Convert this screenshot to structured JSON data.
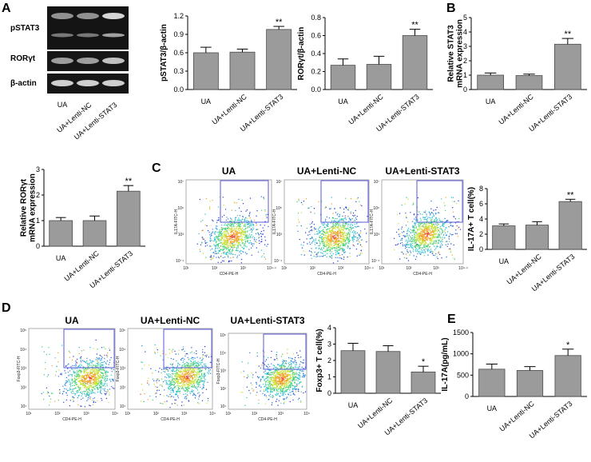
{
  "panels": {
    "A": "A",
    "B": "B",
    "C": "C",
    "D": "D",
    "E": "E"
  },
  "western_blot": {
    "bands": [
      "pSTAT3",
      "RORγt",
      "β-actin"
    ],
    "lanes": [
      "UA",
      "UA+Lenti-NC",
      "UA+Lenti-STAT3"
    ],
    "intensity": [
      [
        0.45,
        0.45,
        0.95
      ],
      [
        0.55,
        0.55,
        0.8
      ],
      [
        0.9,
        0.9,
        0.9
      ]
    ]
  },
  "flow": {
    "C": {
      "titles": [
        "UA",
        "UA+Lenti-NC",
        "UA+Lenti-STAT3"
      ],
      "xlabel": "CD4-PE-H",
      "ylabel": "IL17A-FITC-H",
      "xticks": [
        "10¹",
        "10²",
        "10³",
        "10⁴·⁴"
      ],
      "yticks": [
        "10⁷",
        "10⁵",
        "10³",
        "10⁻¹"
      ]
    },
    "D": {
      "titles": [
        "UA",
        "UA+Lenti-NC",
        "UA+Lenti-STAT3"
      ],
      "xlabel": "CD4-PE-H",
      "ylabel": "Foxp3-FITC-H",
      "xticks": [
        "10¹",
        "10²",
        "10³",
        "10⁴"
      ],
      "yticks": [
        "10⁵",
        "10⁴",
        "10³",
        "10²",
        "10¹"
      ]
    }
  },
  "chart_data": [
    {
      "id": "A1",
      "type": "bar",
      "categories": [
        "UA",
        "UA+Lenti-NC",
        "UA+Lenti-STAT3"
      ],
      "values": [
        0.6,
        0.61,
        0.98
      ],
      "errors": [
        0.09,
        0.05,
        0.05
      ],
      "sig": [
        "",
        "",
        "**"
      ],
      "ylabel": "pSTAT3/β-actin",
      "ylim": [
        0,
        1.2
      ],
      "yticks": [
        0.0,
        0.3,
        0.6,
        0.9,
        1.2
      ],
      "ytick_labels": [
        "0.0",
        "0.3",
        "0.6",
        "0.9",
        "1.2"
      ]
    },
    {
      "id": "A2",
      "type": "bar",
      "categories": [
        "UA",
        "UA+Lenti-NC",
        "UA+Lenti-STAT3"
      ],
      "values": [
        0.27,
        0.28,
        0.6
      ],
      "errors": [
        0.07,
        0.09,
        0.07
      ],
      "sig": [
        "",
        "",
        "**"
      ],
      "ylabel": "RORγt/β-actin",
      "ylim": [
        0,
        0.8
      ],
      "yticks": [
        0.0,
        0.2,
        0.4,
        0.6,
        0.8
      ],
      "ytick_labels": [
        "0.0",
        "0.2",
        "0.4",
        "0.6",
        "0.8"
      ]
    },
    {
      "id": "B",
      "type": "bar",
      "categories": [
        "UA",
        "UA+Lenti-NC",
        "UA+Lenti-STAT3"
      ],
      "values": [
        1.0,
        0.97,
        3.15
      ],
      "errors": [
        0.15,
        0.1,
        0.4
      ],
      "sig": [
        "",
        "",
        "**"
      ],
      "ylabel": "Relative STAT3 mRNA expression",
      "ylim": [
        0,
        5
      ],
      "yticks": [
        0,
        1,
        2,
        3,
        4,
        5
      ],
      "ytick_labels": [
        "0",
        "1",
        "2",
        "3",
        "4",
        "5"
      ]
    },
    {
      "id": "A3",
      "type": "bar",
      "categories": [
        "UA",
        "UA+Lenti-NC",
        "UA+Lenti-STAT3"
      ],
      "values": [
        1.0,
        1.0,
        2.15
      ],
      "errors": [
        0.12,
        0.18,
        0.22
      ],
      "sig": [
        "",
        "",
        "**"
      ],
      "ylabel": "Relative RORγt mRNA expression",
      "ylim": [
        0,
        3
      ],
      "yticks": [
        0,
        1,
        2,
        3
      ],
      "ytick_labels": [
        "0",
        "1",
        "2",
        "3"
      ]
    },
    {
      "id": "C",
      "type": "bar",
      "categories": [
        "UA",
        "UA+Lenti-NC",
        "UA+Lenti-STAT3"
      ],
      "values": [
        3.1,
        3.2,
        6.3
      ],
      "errors": [
        0.25,
        0.45,
        0.3
      ],
      "sig": [
        "",
        "",
        "**"
      ],
      "ylabel": "IL-17A+ T cell(%)",
      "ylim": [
        0,
        8
      ],
      "yticks": [
        0,
        2,
        4,
        6,
        8
      ],
      "ytick_labels": [
        "0",
        "2",
        "4",
        "6",
        "8"
      ]
    },
    {
      "id": "D",
      "type": "bar",
      "categories": [
        "UA",
        "UA+Lenti-NC",
        "UA+Lenti-STAT3"
      ],
      "values": [
        2.6,
        2.55,
        1.3
      ],
      "errors": [
        0.45,
        0.35,
        0.35
      ],
      "sig": [
        "",
        "",
        "*"
      ],
      "ylabel": "Foxp3+ T cell(%)",
      "ylim": [
        0,
        4
      ],
      "yticks": [
        0,
        1,
        2,
        3,
        4
      ],
      "ytick_labels": [
        "0",
        "1",
        "2",
        "3",
        "4"
      ]
    },
    {
      "id": "E",
      "type": "bar",
      "categories": [
        "UA",
        "UA+Lenti-NC",
        "UA+Lenti-STAT3"
      ],
      "values": [
        640,
        610,
        960
      ],
      "errors": [
        120,
        90,
        150
      ],
      "sig": [
        "",
        "",
        "*"
      ],
      "ylabel": "IL-17A(pg/mL)",
      "ylim": [
        0,
        1500
      ],
      "yticks": [
        0,
        500,
        1000,
        1500
      ],
      "ytick_labels": [
        "0",
        "500",
        "1000",
        "1500"
      ]
    }
  ]
}
